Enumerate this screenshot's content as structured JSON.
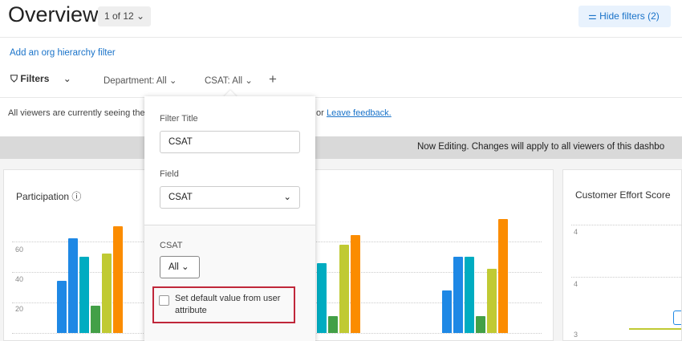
{
  "header": {
    "title": "Overview",
    "pager": "1 of 12",
    "hide_filters": "Hide filters (2)"
  },
  "filters": {
    "org_link": "Add an org hierarchy filter",
    "label": "Filters",
    "chips": [
      "Department: All",
      "CSAT: All"
    ],
    "add": "+"
  },
  "notice": {
    "text": "All viewers are currently seeing the",
    "suffix": "or",
    "link": "Leave feedback."
  },
  "banner": "Now Editing. Changes will apply to all viewers of this dashbo",
  "popover": {
    "filter_title_label": "Filter Title",
    "filter_title_value": "CSAT",
    "field_label": "Field",
    "field_value": "CSAT",
    "csat_label": "CSAT",
    "csat_value": "All",
    "checkbox_label": "Set default value from user attribute",
    "checkbox_checked": false
  },
  "cards": {
    "participation": {
      "title": "Participation",
      "ticks": [
        "60",
        "40",
        "20"
      ]
    },
    "ces": {
      "title": "Customer Effort Score",
      "ticks": [
        "4",
        "4",
        "3"
      ]
    }
  },
  "colors": {
    "accent": "#1a73c9",
    "highlight": "#c0273a",
    "bars": [
      "#1e88e5",
      "#1e88e5",
      "#00acc1",
      "#43a047",
      "#c0ca33",
      "#fb8c00"
    ]
  },
  "chart_data": {
    "type": "bar",
    "groups": [
      [
        34,
        62,
        50,
        18,
        52,
        70
      ],
      [
        18,
        28,
        46,
        11,
        58,
        64
      ],
      [
        28,
        50,
        50,
        11,
        42,
        75
      ]
    ],
    "ylim": [
      0,
      80
    ]
  }
}
